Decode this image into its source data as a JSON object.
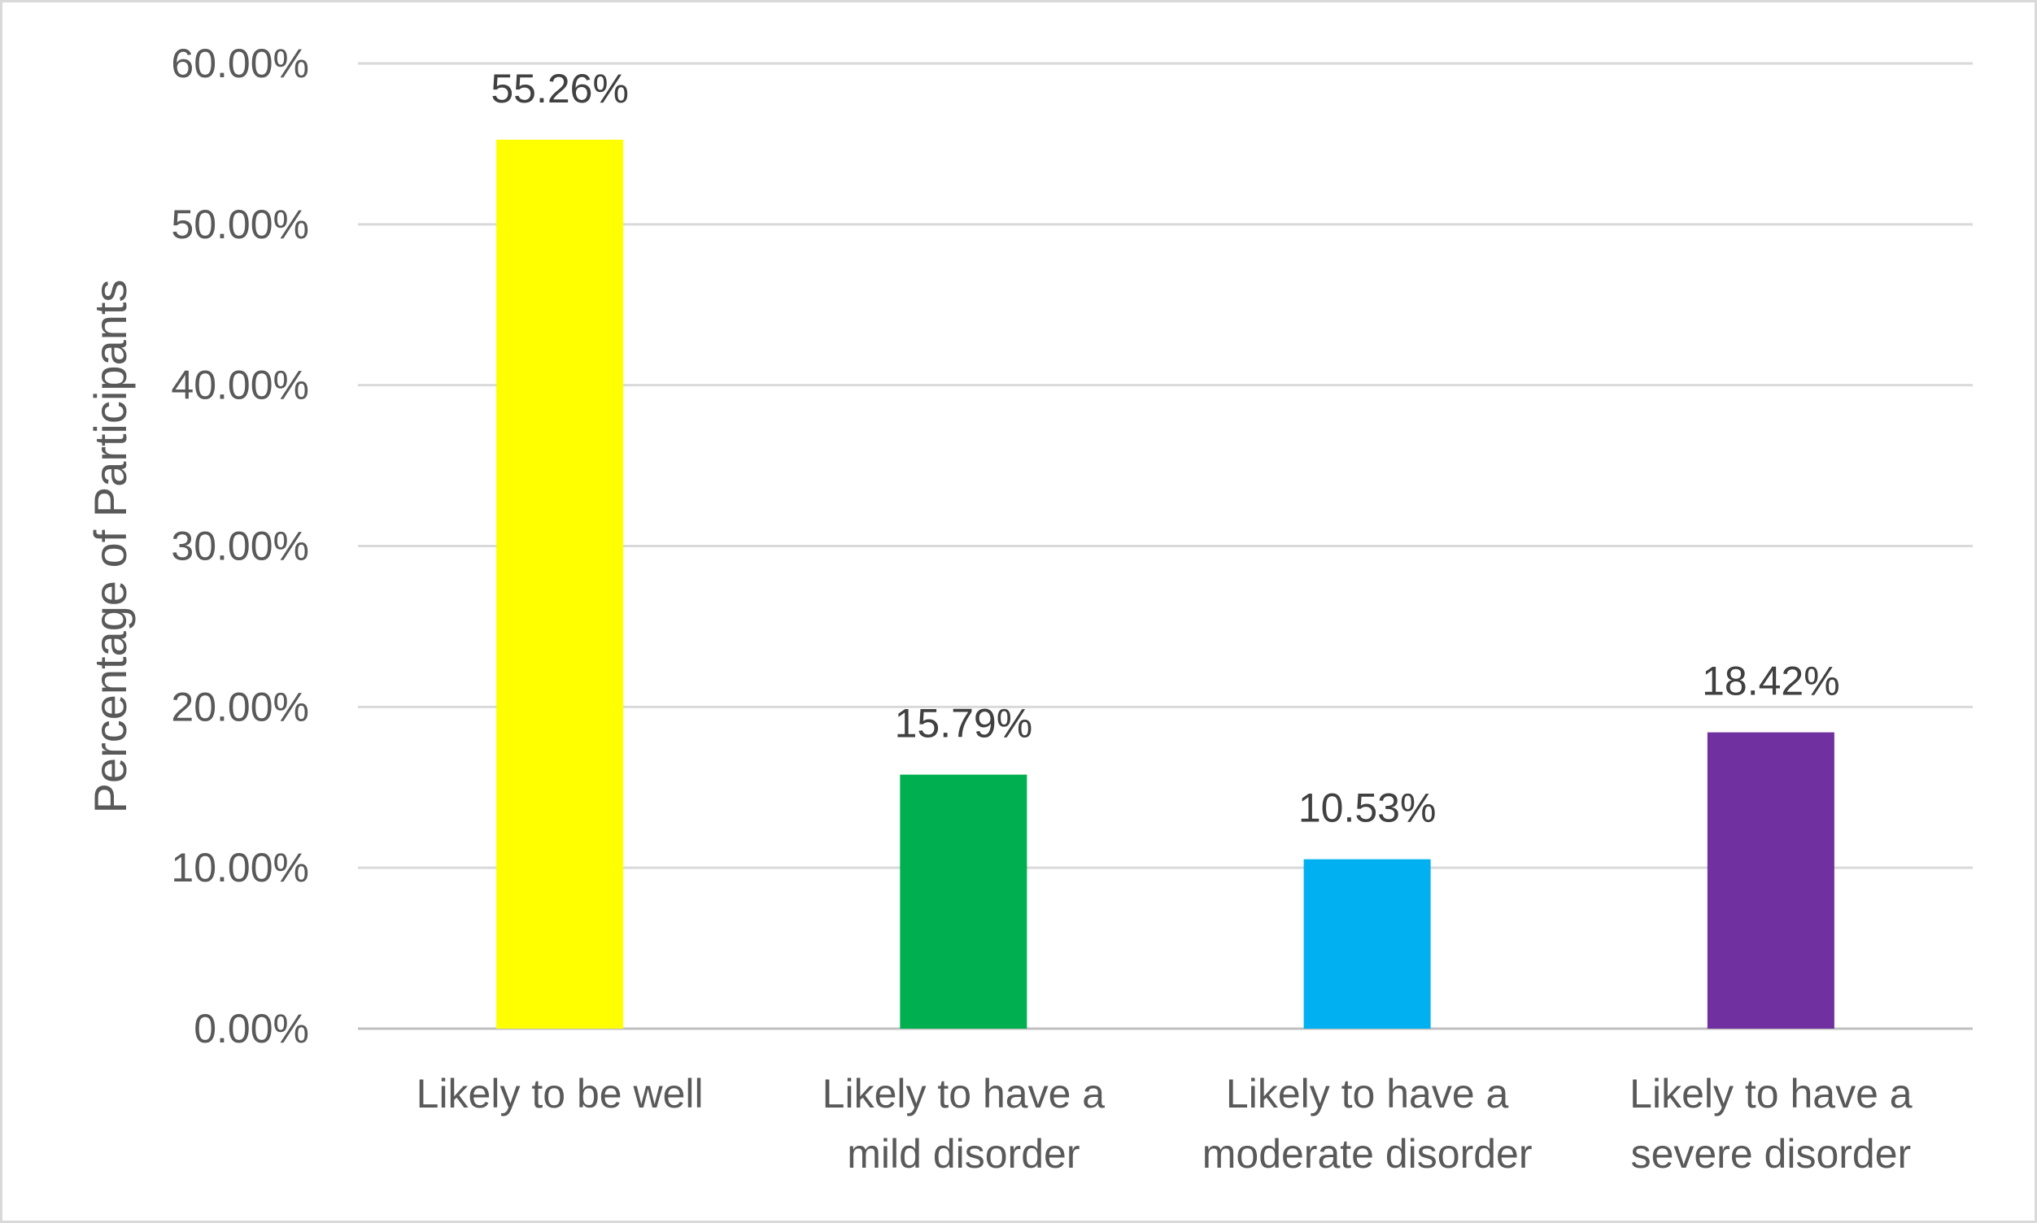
{
  "chart_data": {
    "type": "bar",
    "title": "",
    "xlabel": "",
    "ylabel": "Percentage of  Participants",
    "ylim": [
      0,
      60
    ],
    "yticks": [
      0,
      10,
      20,
      30,
      40,
      50,
      60
    ],
    "ytick_labels": [
      "0.00%",
      "10.00%",
      "20.00%",
      "30.00%",
      "40.00%",
      "50.00%",
      "60.00%"
    ],
    "grid": true,
    "legend": "none",
    "categories": [
      [
        "Likely to be well"
      ],
      [
        "Likely to have a",
        "mild disorder"
      ],
      [
        "Likely to have a",
        "moderate disorder"
      ],
      [
        "Likely to have a",
        "severe disorder"
      ]
    ],
    "values": [
      55.26,
      15.79,
      10.53,
      18.42
    ],
    "data_labels": [
      "55.26%",
      "15.79%",
      "10.53%",
      "18.42%"
    ],
    "colors": [
      "#ffff00",
      "#00b050",
      "#00b0f0",
      "#7030a0"
    ],
    "gridline_color": "#d9d9d9",
    "axis_color": "#bfbfbf"
  }
}
